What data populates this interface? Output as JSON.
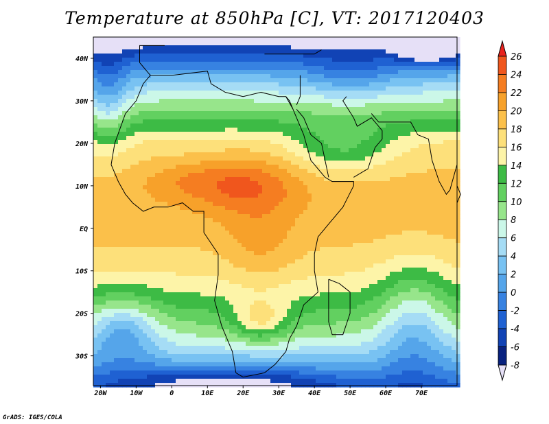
{
  "title": "Temperature at 850hPa [C], VT: 2017120403",
  "footer": "GrADS: IGES/COLA",
  "chart_data": {
    "type": "heatmap",
    "title": "Temperature at 850hPa [C], VT: 2017120403",
    "variable": "Temperature at 850hPa",
    "unit": "C",
    "valid_time": "2017120403",
    "lon_range": [
      -22,
      80
    ],
    "lat_range": [
      -37,
      45
    ],
    "x_ticks": [
      "20W",
      "10W",
      "0",
      "10E",
      "20E",
      "30E",
      "40E",
      "50E",
      "60E",
      "70E"
    ],
    "x_tick_values": [
      -20,
      -10,
      0,
      10,
      20,
      30,
      40,
      50,
      60,
      70
    ],
    "y_ticks": [
      "40N",
      "30N",
      "20N",
      "10N",
      "EQ",
      "10S",
      "20S",
      "30S"
    ],
    "y_tick_values": [
      40,
      30,
      20,
      10,
      0,
      -10,
      -20,
      -30
    ],
    "colorbar": {
      "labels": [
        "26",
        "24",
        "22",
        "20",
        "18",
        "16",
        "14",
        "12",
        "10",
        "8",
        "6",
        "4",
        "2",
        "0",
        "-2",
        "-4",
        "-6",
        "-8"
      ],
      "levels": [
        26,
        24,
        22,
        20,
        18,
        16,
        14,
        12,
        10,
        8,
        6,
        4,
        2,
        0,
        -2,
        -4,
        -6,
        -8
      ],
      "colors": [
        "#e8221d",
        "#f0561d",
        "#f57d21",
        "#f7a12a",
        "#fbc04a",
        "#fde07a",
        "#fdf4a8",
        "#3dbb45",
        "#62d060",
        "#97e58b",
        "#cbf7e8",
        "#a5dcf5",
        "#78c2f2",
        "#55a5ea",
        "#3782e1",
        "#1f61d2",
        "#1143b5",
        "#08217f",
        "#e6e0f7"
      ],
      "extend": "both"
    }
  }
}
